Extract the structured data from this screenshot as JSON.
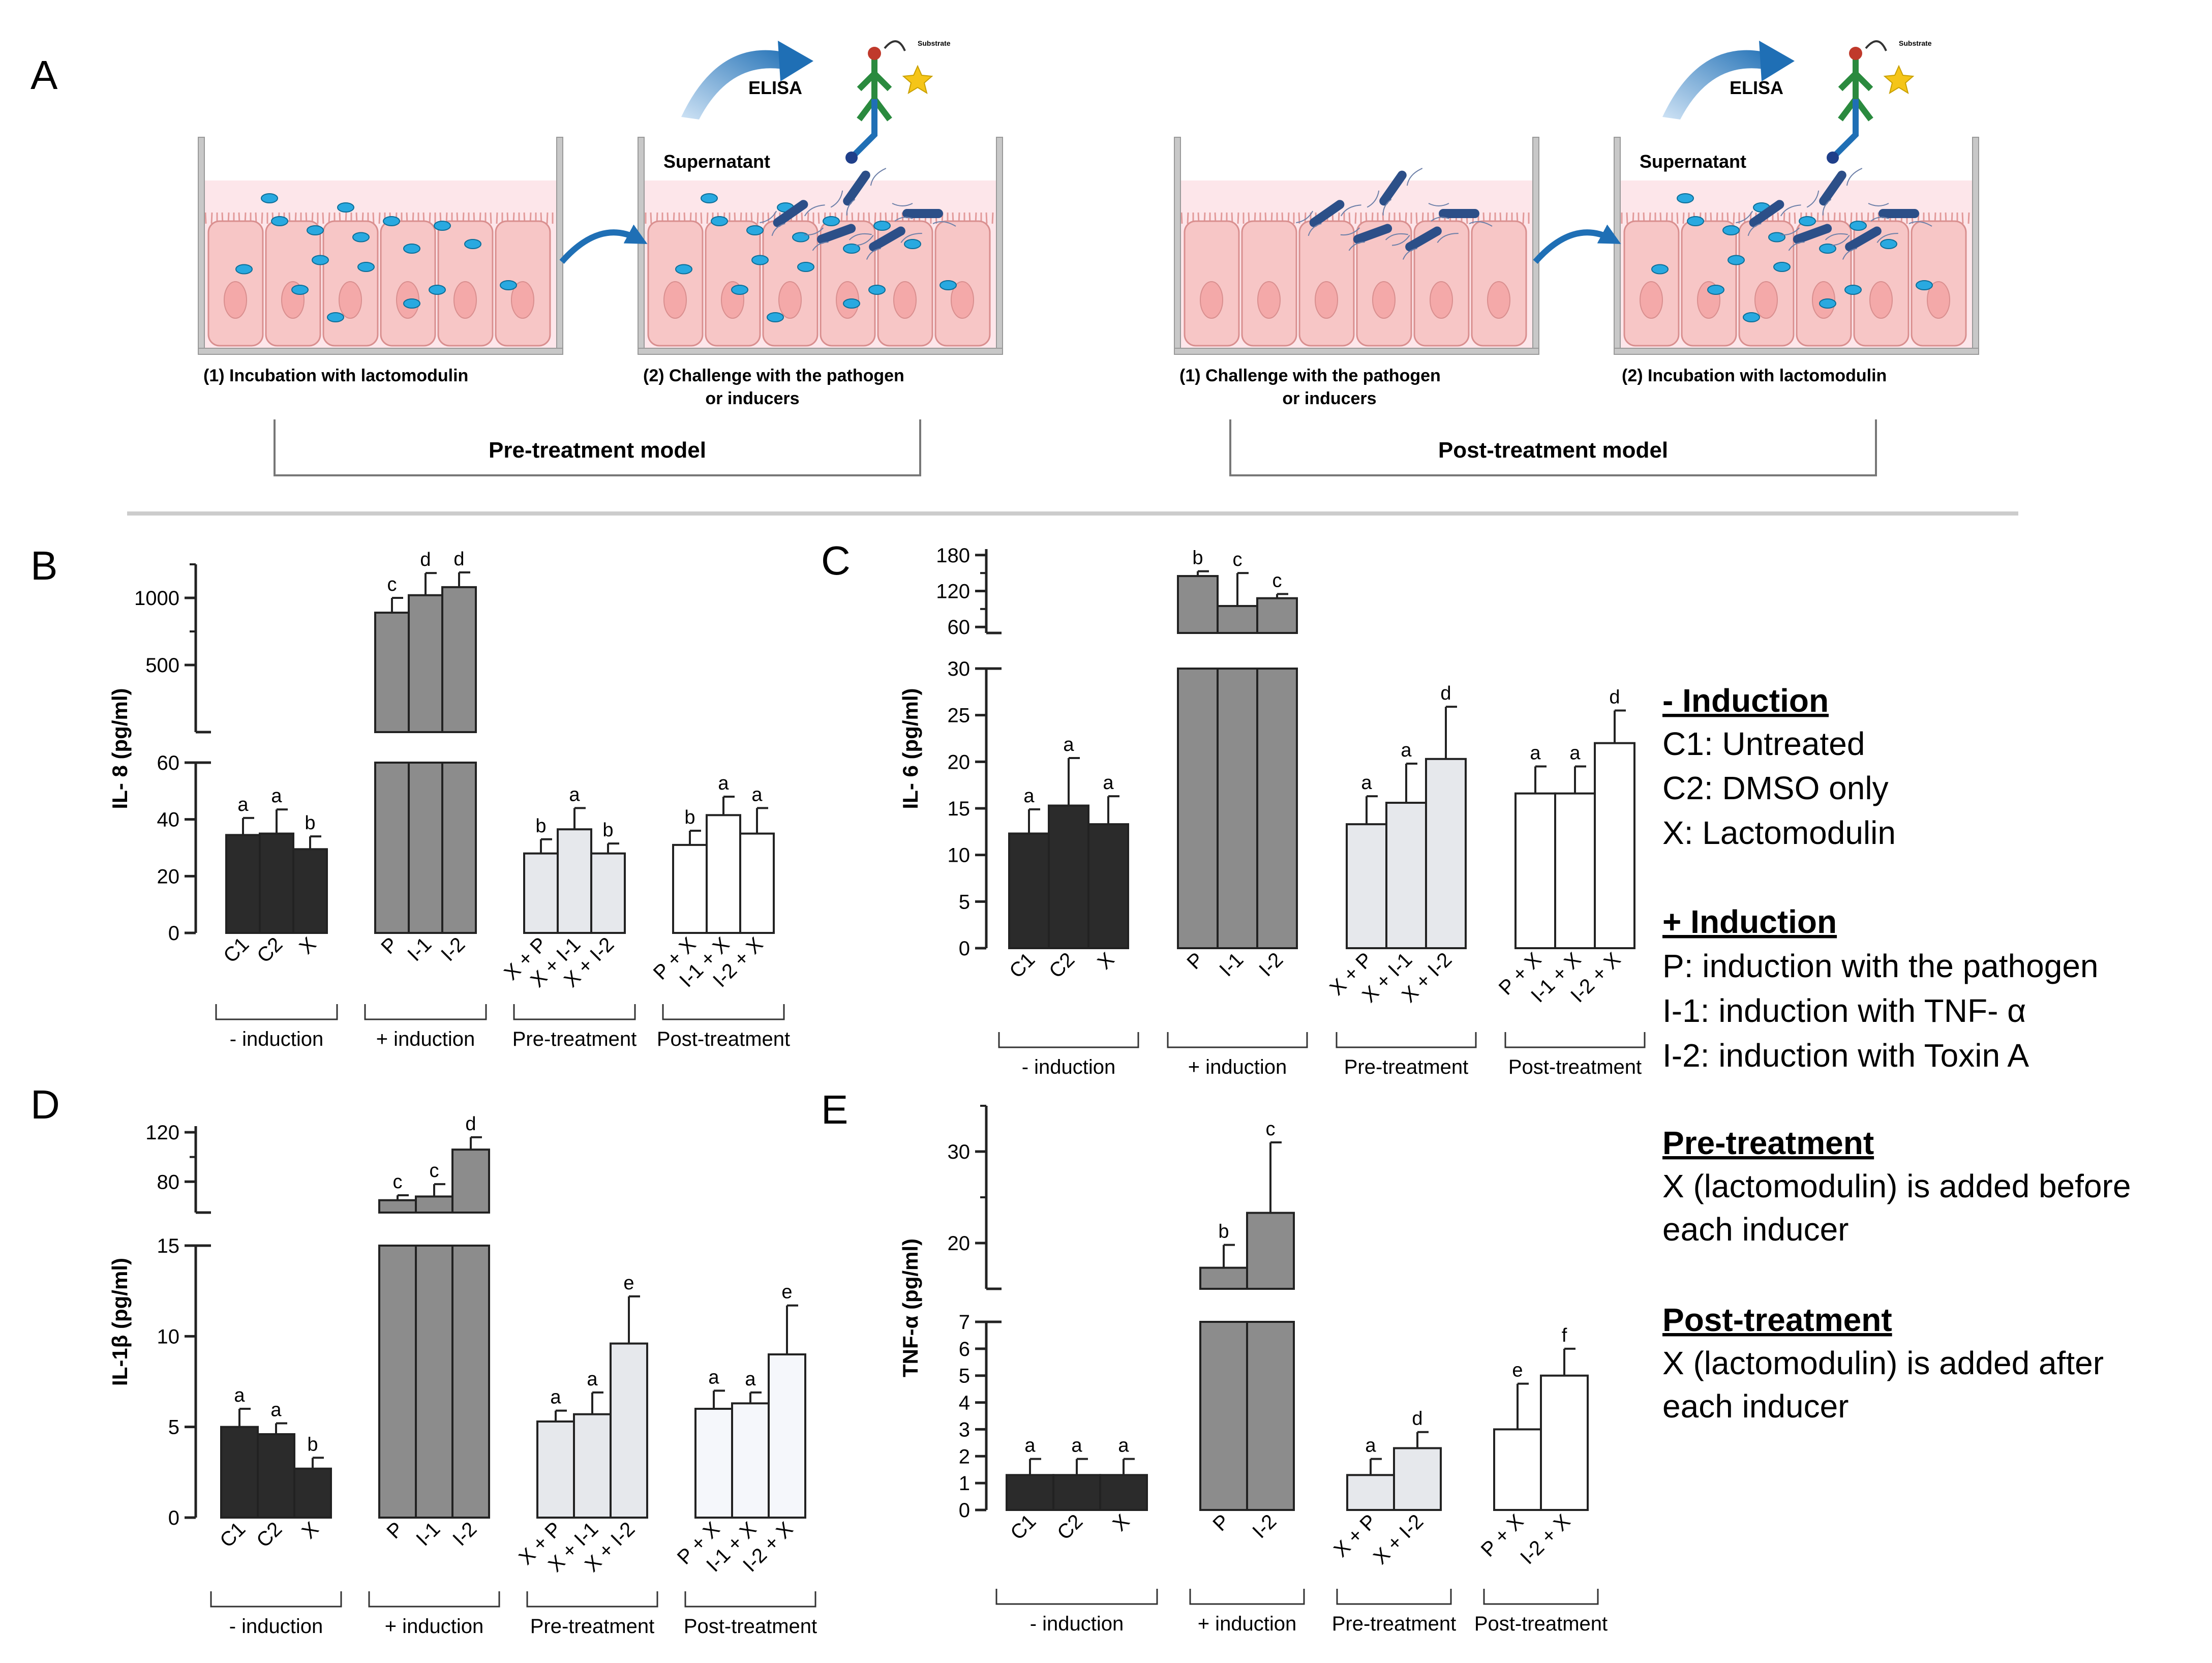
{
  "figure_labels": {
    "a": "A",
    "b": "B",
    "c": "C",
    "d": "D",
    "e": "E"
  },
  "schematic": {
    "elisa": "ELISA",
    "substrate": "Substrate",
    "supernatant": "Supernatant",
    "pre_step1": "(1) Incubation with lactomodulin",
    "pre_step2_line1": "(2) Challenge with the pathogen",
    "pre_step2_line2": "or inducers",
    "pre_model": "Pre-treatment model",
    "post_step1_line1": "(1) Challenge with the pathogen",
    "post_step1_line2": "or inducers",
    "post_step2": "(2) Incubation with lactomodulin",
    "post_model": "Post-treatment model"
  },
  "legend": {
    "minus_heading": "- Induction",
    "c1": "C1: Untreated",
    "c2": "C2: DMSO only",
    "x": "X: Lactomodulin",
    "plus_heading": "+ Induction",
    "p": "P: induction with the pathogen",
    "i1": "I-1: induction with TNF- α",
    "i2": "I-2: induction with Toxin A",
    "pre_heading": "Pre-treatment",
    "pre_line1": "X (lactomodulin) is added before",
    "pre_line2": "each inducer",
    "post_heading": "Post-treatment",
    "post_line1": "X (lactomodulin) is added after",
    "post_line2": "each inducer"
  },
  "colors": {
    "minus_induction": "#2b2b2b",
    "plus_induction": "#8c8c8c",
    "pre_treatment": "#e6e8ec",
    "post_treatment": "#ffffff",
    "post_treatment_alt": "#f5f7fb",
    "axis": "#222222",
    "cell_fill": "#f7c6c6",
    "medium_fill": "#fde6ea",
    "lactomodulin": "#29a9e0",
    "pathogen": "#2c4f88",
    "arrow": "#1f6fb5"
  },
  "chart_data": [
    {
      "panel": "B",
      "type": "bar",
      "ylabel": "IL- 8 (pg/ml)",
      "lower_ylim": [
        0,
        60
      ],
      "lower_ticks": [
        0,
        20,
        40,
        60
      ],
      "upper_ylim": [
        0,
        1250
      ],
      "upper_ticks": [
        500,
        1000
      ],
      "groups": [
        {
          "name": "- induction",
          "bars": [
            {
              "label": "C1",
              "value": 34.5,
              "error": 6,
              "letter": "a"
            },
            {
              "label": "C2",
              "value": 35,
              "error": 8.5,
              "letter": "a"
            },
            {
              "label": "X",
              "value": 29.5,
              "error": 4.5,
              "letter": "b"
            }
          ]
        },
        {
          "name": "+ induction",
          "bars": [
            {
              "label": "P",
              "value": 890,
              "error": 110,
              "letter": "c"
            },
            {
              "label": "I-1",
              "value": 1020,
              "error": 165,
              "letter": "d"
            },
            {
              "label": "I-2",
              "value": 1080,
              "error": 110,
              "letter": "d"
            }
          ]
        },
        {
          "name": "Pre-treatment",
          "bars": [
            {
              "label": "X + P",
              "value": 28,
              "error": 5,
              "letter": "b"
            },
            {
              "label": "X + I-1",
              "value": 36.5,
              "error": 7.5,
              "letter": "a"
            },
            {
              "label": "X + I-2",
              "value": 28,
              "error": 3.5,
              "letter": "b"
            }
          ]
        },
        {
          "name": "Post-treatment",
          "bars": [
            {
              "label": "P + X",
              "value": 31,
              "error": 5,
              "letter": "b"
            },
            {
              "label": "I-1 + X",
              "value": 41.5,
              "error": 6.5,
              "letter": "a"
            },
            {
              "label": "I-2 + X",
              "value": 35,
              "error": 9,
              "letter": "a"
            }
          ]
        }
      ]
    },
    {
      "panel": "C",
      "type": "bar",
      "ylabel": "IL- 6 (pg/ml)",
      "lower_ylim": [
        0,
        30
      ],
      "lower_ticks": [
        0,
        5,
        10,
        15,
        20,
        25,
        30
      ],
      "upper_ylim": [
        50,
        190
      ],
      "upper_ticks": [
        60,
        120,
        180
      ],
      "groups": [
        {
          "name": "- induction",
          "bars": [
            {
              "label": "C1",
              "value": 12.3,
              "error": 2.6,
              "letter": "a"
            },
            {
              "label": "C2",
              "value": 15.3,
              "error": 5.1,
              "letter": "a"
            },
            {
              "label": "X",
              "value": 13.3,
              "error": 3,
              "letter": "a"
            }
          ]
        },
        {
          "name": "+ induction",
          "bars": [
            {
              "label": "P",
              "value": 145,
              "error": 8,
              "letter": "b"
            },
            {
              "label": "I-1",
              "value": 95,
              "error": 55,
              "letter": "c"
            },
            {
              "label": "I-2",
              "value": 108,
              "error": 7,
              "letter": "c"
            }
          ]
        },
        {
          "name": "Pre-treatment",
          "bars": [
            {
              "label": "X + P",
              "value": 13.3,
              "error": 3,
              "letter": "a"
            },
            {
              "label": "X + I-1",
              "value": 15.6,
              "error": 4.2,
              "letter": "a"
            },
            {
              "label": "X + I-2",
              "value": 20.3,
              "error": 5.6,
              "letter": "d"
            }
          ]
        },
        {
          "name": "Post-treatment",
          "bars": [
            {
              "label": "P + X",
              "value": 16.6,
              "error": 2.9,
              "letter": "a"
            },
            {
              "label": "I-1 + X",
              "value": 16.6,
              "error": 2.9,
              "letter": "a"
            },
            {
              "label": "I-2 + X",
              "value": 22,
              "error": 3.5,
              "letter": "d"
            }
          ]
        }
      ]
    },
    {
      "panel": "D",
      "type": "bar",
      "ylabel": "IL-1β (pg/ml)",
      "lower_ylim": [
        0,
        15
      ],
      "lower_ticks": [
        0,
        5,
        10,
        15
      ],
      "upper_ylim": [
        55,
        125
      ],
      "upper_ticks": [
        80,
        120
      ],
      "groups": [
        {
          "name": "- induction",
          "bars": [
            {
              "label": "C1",
              "value": 5,
              "error": 1,
              "letter": "a"
            },
            {
              "label": "C2",
              "value": 4.6,
              "error": 0.6,
              "letter": "a"
            },
            {
              "label": "X",
              "value": 2.7,
              "error": 0.6,
              "letter": "b"
            }
          ]
        },
        {
          "name": "+ induction",
          "bars": [
            {
              "label": "P",
              "value": 65,
              "error": 4,
              "letter": "c"
            },
            {
              "label": "I-1",
              "value": 68,
              "error": 10,
              "letter": "c"
            },
            {
              "label": "I-2",
              "value": 106,
              "error": 10,
              "letter": "d"
            }
          ]
        },
        {
          "name": "Pre-treatment",
          "bars": [
            {
              "label": "X + P",
              "value": 5.3,
              "error": 0.6,
              "letter": "a"
            },
            {
              "label": "X + I-1",
              "value": 5.7,
              "error": 1.2,
              "letter": "a"
            },
            {
              "label": "X + I-2",
              "value": 9.6,
              "error": 2.6,
              "letter": "e"
            }
          ]
        },
        {
          "name": "Post-treatment",
          "bars": [
            {
              "label": "P + X",
              "value": 6,
              "error": 1,
              "letter": "a"
            },
            {
              "label": "I-1 + X",
              "value": 6.3,
              "error": 0.6,
              "letter": "a"
            },
            {
              "label": "I-2 + X",
              "value": 9,
              "error": 2.7,
              "letter": "e"
            }
          ]
        }
      ]
    },
    {
      "panel": "E",
      "type": "bar",
      "ylabel": "TNF-α (pg/ml)",
      "lower_ylim": [
        0,
        7
      ],
      "lower_ticks": [
        0,
        1,
        2,
        3,
        4,
        5,
        6,
        7
      ],
      "upper_ylim": [
        15,
        35
      ],
      "upper_ticks": [
        20,
        30
      ],
      "groups": [
        {
          "name": "- induction",
          "bars": [
            {
              "label": "C1",
              "value": 1.3,
              "error": 0.6,
              "letter": "a"
            },
            {
              "label": "C2",
              "value": 1.3,
              "error": 0.6,
              "letter": "a"
            },
            {
              "label": "X",
              "value": 1.3,
              "error": 0.6,
              "letter": "a"
            }
          ]
        },
        {
          "name": "+ induction",
          "bars": [
            {
              "label": "P",
              "value": 17.3,
              "error": 2.5,
              "letter": "b"
            },
            {
              "label": "I-2",
              "value": 23.3,
              "error": 7.7,
              "letter": "c"
            }
          ]
        },
        {
          "name": "Pre-treatment",
          "bars": [
            {
              "label": "X + P",
              "value": 1.3,
              "error": 0.6,
              "letter": "a"
            },
            {
              "label": "X + I-2",
              "value": 2.3,
              "error": 0.6,
              "letter": "d"
            }
          ]
        },
        {
          "name": "Post-treatment",
          "bars": [
            {
              "label": "P + X",
              "value": 3,
              "error": 1.7,
              "letter": "e"
            },
            {
              "label": "I-2 + X",
              "value": 5,
              "error": 1,
              "letter": "f"
            }
          ]
        }
      ]
    }
  ]
}
